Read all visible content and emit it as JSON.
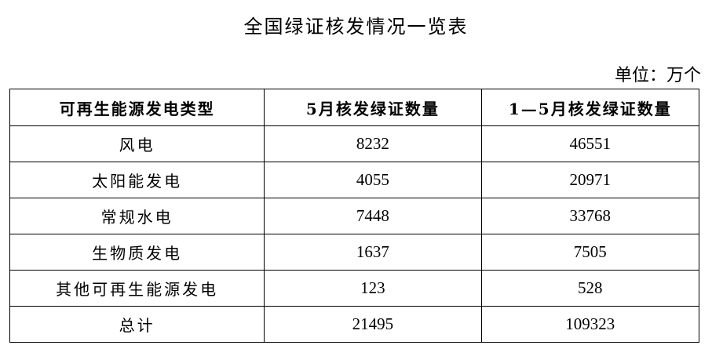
{
  "title": "全国绿证核发情况一览表",
  "unit": "单位：万个",
  "table": {
    "headers": [
      "可再生能源发电类型",
      "5月核发绿证数量",
      "1—5月核发绿证数量"
    ],
    "rows": [
      [
        "风电",
        "8232",
        "46551"
      ],
      [
        "太阳能发电",
        "4055",
        "20971"
      ],
      [
        "常规水电",
        "7448",
        "33768"
      ],
      [
        "生物质发电",
        "1637",
        "7505"
      ],
      [
        "其他可再生能源发电",
        "123",
        "528"
      ],
      [
        "总计",
        "21495",
        "109323"
      ]
    ]
  }
}
